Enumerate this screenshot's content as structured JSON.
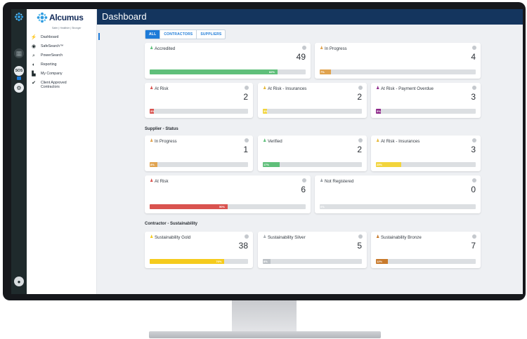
{
  "app": {
    "brand": "Alcumus",
    "tagline": "Safer | Healthier | Stronger",
    "page_title": "Dashboard",
    "rail_sos": "SOS"
  },
  "nav": [
    {
      "id": "dashboard",
      "label": "Dashboard",
      "icon": "speedometer-icon",
      "glyph": "⚡"
    },
    {
      "id": "safesearch",
      "label": "SafeSearch™",
      "icon": "eye-icon",
      "glyph": "◉"
    },
    {
      "id": "powersearch",
      "label": "PowerSearch",
      "icon": "search-icon",
      "glyph": "⌕"
    },
    {
      "id": "reporting",
      "label": "Reporting",
      "icon": "pie-chart-icon",
      "glyph": "◐"
    },
    {
      "id": "my-company",
      "label": "My Company",
      "icon": "building-icon",
      "glyph": "▙"
    },
    {
      "id": "client-approved",
      "label": "Client Approved Contractors",
      "icon": "check-circle-icon",
      "glyph": "✔"
    }
  ],
  "tabs": [
    "ALL",
    "CONTRACTORS",
    "SUPPLIERS"
  ],
  "sections": {
    "supplier": "Supplier - Status",
    "sustainability": "Contractor - Sustainability"
  },
  "colors": {
    "green": "#5fbf7a",
    "orange": "#e0a34f",
    "red": "#d9534f",
    "purple": "#8e2a8a",
    "yellow": "#f2d43c",
    "gold": "#f5cb1d",
    "bronze": "#c87a2c",
    "grey_bar": "#dcdfe2"
  },
  "contractor_cards": [
    {
      "label": "Accredited",
      "value": "49",
      "pct": "82%",
      "fraction": 0.82,
      "color": "#5fbf7a",
      "icon_color": "#5fbf7a"
    },
    {
      "label": "In Progress",
      "value": "4",
      "pct": "7%",
      "fraction": 0.07,
      "color": "#e0a34f",
      "icon_color": "#e0a34f"
    },
    {
      "label": "At Risk",
      "value": "2",
      "pct": "3%",
      "fraction": 0.03,
      "color": "#d9534f",
      "icon_color": "#d9534f"
    },
    {
      "label": "At Risk - Insurances",
      "value": "2",
      "pct": "3%",
      "fraction": 0.03,
      "color": "#f2d43c",
      "icon_color": "#e6b93a"
    },
    {
      "label": "At Risk - Payment Overdue",
      "value": "3",
      "pct": "5%",
      "fraction": 0.05,
      "color": "#8e2a8a",
      "icon_color": "#8e2a8a"
    }
  ],
  "supplier_cards": [
    {
      "label": "In Progress",
      "value": "1",
      "pct": "8%",
      "fraction": 0.08,
      "color": "#e0a34f",
      "icon_color": "#e0a34f"
    },
    {
      "label": "Verified",
      "value": "2",
      "pct": "17%",
      "fraction": 0.17,
      "color": "#5fbf7a",
      "icon_color": "#5fbf7a"
    },
    {
      "label": "At Risk - Insurances",
      "value": "3",
      "pct": "25%",
      "fraction": 0.25,
      "color": "#f2d43c",
      "icon_color": "#e6b93a"
    },
    {
      "label": "At Risk",
      "value": "6",
      "pct": "50%",
      "fraction": 0.5,
      "color": "#d9534f",
      "icon_color": "#d9534f"
    },
    {
      "label": "Not Registered",
      "value": "0",
      "pct": "0%",
      "fraction": 0.0,
      "color": "#dcdfe2",
      "icon_color": "#9aa0a6"
    }
  ],
  "sustainability_cards": [
    {
      "label": "Sustainability Gold",
      "value": "38",
      "pct": "76%",
      "fraction": 0.76,
      "color": "#f5cb1d",
      "icon_color": "#f5cb1d"
    },
    {
      "label": "Sustainability Silver",
      "value": "5",
      "pct": "8%",
      "fraction": 0.08,
      "color": "#bcc1c6",
      "icon_color": "#a9aeb3"
    },
    {
      "label": "Sustainability Bronze",
      "value": "7",
      "pct": "12%",
      "fraction": 0.12,
      "color": "#c87a2c",
      "icon_color": "#c87a2c"
    }
  ]
}
